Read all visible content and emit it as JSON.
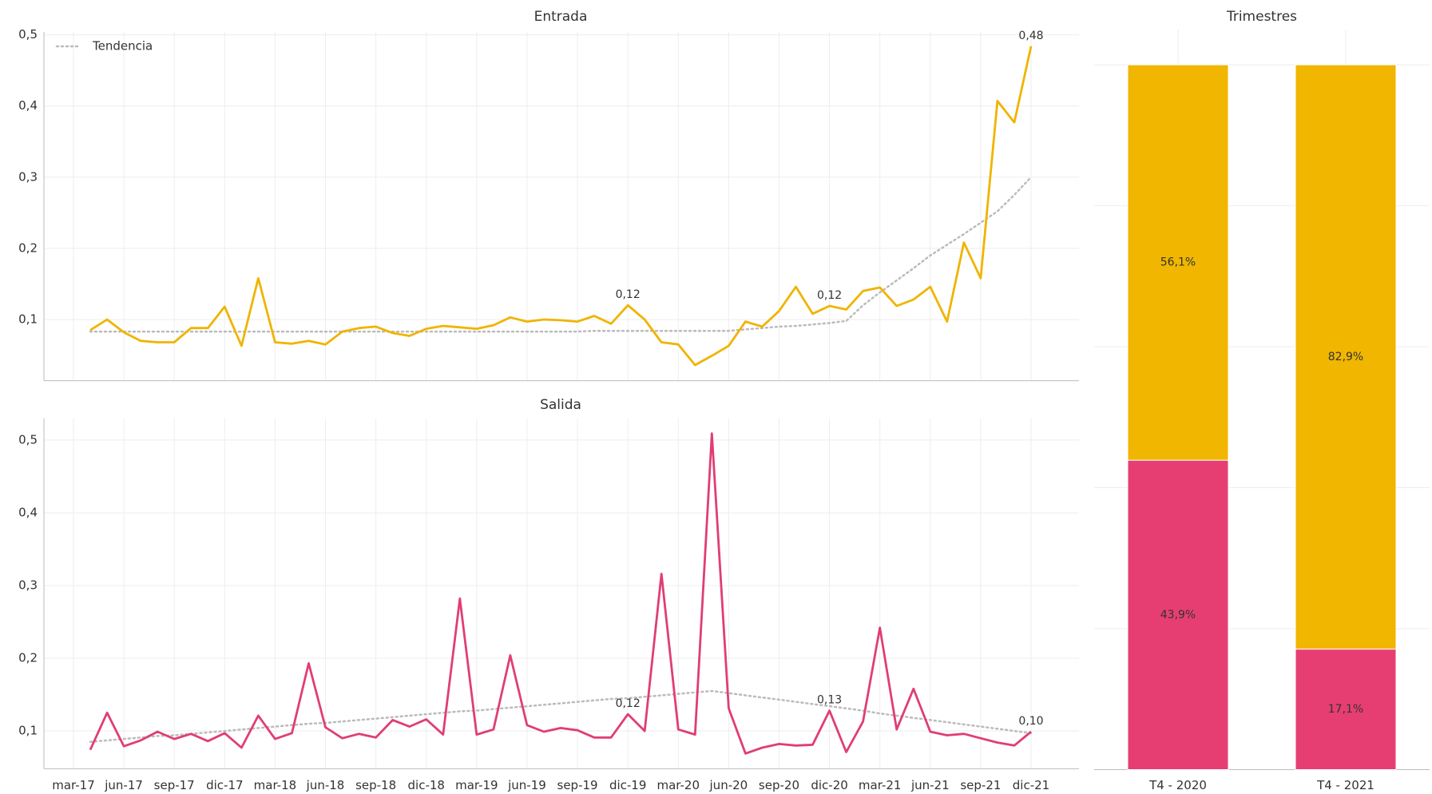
{
  "chart_data": [
    {
      "type": "line",
      "title": "Entrada",
      "color": "#f0b400",
      "values": [
        null,
        0.085,
        0.1,
        0.082,
        0.07,
        0.068,
        0.068,
        0.088,
        0.088,
        0.118,
        0.063,
        0.158,
        0.068,
        0.066,
        0.07,
        0.065,
        0.083,
        0.088,
        0.09,
        0.081,
        0.077,
        0.087,
        0.091,
        0.089,
        0.087,
        0.092,
        0.103,
        0.097,
        0.1,
        0.099,
        0.097,
        0.105,
        0.094,
        0.12,
        0.1,
        0.068,
        0.065,
        0.036,
        0.049,
        0.063,
        0.097,
        0.09,
        0.112,
        0.146,
        0.108,
        0.119,
        0.114,
        0.14,
        0.145,
        0.119,
        0.128,
        0.146,
        0.097,
        0.208,
        0.158,
        0.407,
        0.377,
        0.484
      ],
      "value_labels": [
        null,
        null,
        null,
        null,
        null,
        null,
        null,
        null,
        null,
        null,
        null,
        null,
        null,
        null,
        null,
        null,
        null,
        null,
        null,
        null,
        null,
        null,
        null,
        null,
        null,
        null,
        null,
        null,
        null,
        null,
        null,
        null,
        null,
        "0,12",
        null,
        null,
        null,
        null,
        null,
        null,
        null,
        null,
        null,
        null,
        null,
        "0,12",
        null,
        null,
        null,
        null,
        null,
        null,
        null,
        null,
        null,
        null,
        null,
        "0,48"
      ],
      "trend": {
        "name": "Tendencia",
        "color": "#bbbbbb",
        "values": [
          null,
          0.083,
          0.083,
          0.083,
          0.083,
          0.083,
          0.083,
          0.083,
          0.083,
          0.083,
          0.083,
          0.083,
          0.083,
          0.083,
          0.083,
          0.083,
          0.083,
          0.083,
          0.083,
          0.083,
          0.083,
          0.083,
          0.083,
          0.083,
          0.083,
          0.083,
          0.083,
          0.083,
          0.083,
          0.083,
          0.083,
          0.084,
          0.084,
          0.084,
          0.084,
          0.084,
          0.084,
          0.084,
          0.084,
          0.084,
          0.086,
          0.088,
          0.09,
          0.091,
          0.093,
          0.095,
          0.098,
          0.12,
          0.138,
          0.155,
          0.172,
          0.19,
          0.205,
          0.22,
          0.236,
          0.252,
          0.275,
          0.3
        ]
      },
      "legend": "upper left",
      "ylim": [
        0.014,
        0.504
      ],
      "yticks": [
        {
          "value": 0.1,
          "label": "0,1"
        },
        {
          "value": 0.2,
          "label": "0,2"
        },
        {
          "value": 0.3,
          "label": "0,3"
        },
        {
          "value": 0.4,
          "label": "0,4"
        },
        {
          "value": 0.5,
          "label": "0,5"
        }
      ],
      "grid": true
    },
    {
      "type": "line",
      "title": "Salida",
      "color": "#e03e72",
      "categories": [
        "mar-17",
        null,
        null,
        "jun-17",
        null,
        null,
        "sep-17",
        null,
        null,
        "dic-17",
        null,
        null,
        "mar-18",
        null,
        null,
        "jun-18",
        null,
        null,
        "sep-18",
        null,
        null,
        "dic-18",
        null,
        null,
        "mar-19",
        null,
        null,
        "jun-19",
        null,
        null,
        "sep-19",
        null,
        null,
        "dic-19",
        null,
        null,
        "mar-20",
        null,
        null,
        "jun-20",
        null,
        null,
        "sep-20",
        null,
        null,
        "dic-20",
        null,
        null,
        "mar-21",
        null,
        null,
        "jun-21",
        null,
        null,
        "sep-21",
        null,
        null,
        "dic-21"
      ],
      "values": [
        null,
        0.074,
        0.125,
        0.079,
        0.087,
        0.099,
        0.089,
        0.096,
        0.086,
        0.097,
        0.077,
        0.121,
        0.089,
        0.097,
        0.193,
        0.105,
        0.09,
        0.096,
        0.091,
        0.115,
        0.106,
        0.116,
        0.095,
        0.282,
        0.095,
        0.102,
        0.204,
        0.108,
        0.099,
        0.104,
        0.101,
        0.091,
        0.091,
        0.123,
        0.1,
        0.316,
        0.102,
        0.095,
        0.509,
        0.131,
        0.069,
        0.077,
        0.082,
        0.08,
        0.081,
        0.128,
        0.071,
        0.113,
        0.242,
        0.102,
        0.158,
        0.099,
        0.094,
        0.096,
        0.09,
        0.084,
        0.08,
        0.099
      ],
      "value_labels": [
        null,
        null,
        null,
        null,
        null,
        null,
        null,
        null,
        null,
        null,
        null,
        null,
        null,
        null,
        null,
        null,
        null,
        null,
        null,
        null,
        null,
        null,
        null,
        null,
        null,
        null,
        null,
        null,
        null,
        null,
        null,
        null,
        null,
        "0,12",
        null,
        null,
        null,
        null,
        null,
        null,
        null,
        null,
        null,
        null,
        null,
        "0,13",
        null,
        null,
        null,
        null,
        null,
        null,
        null,
        null,
        null,
        null,
        null,
        "0,10"
      ],
      "trend": {
        "color": "#bbbbbb",
        "values": [
          null,
          0.085,
          0.087,
          0.089,
          0.091,
          0.093,
          0.094,
          0.096,
          0.098,
          0.1,
          0.102,
          0.104,
          0.106,
          0.108,
          0.11,
          0.111,
          0.113,
          0.115,
          0.117,
          0.119,
          0.121,
          0.123,
          0.125,
          0.127,
          0.128,
          0.13,
          0.132,
          0.134,
          0.136,
          0.138,
          0.14,
          0.142,
          0.144,
          0.145,
          0.147,
          0.149,
          0.151,
          0.153,
          0.155,
          0.152,
          0.149,
          0.146,
          0.143,
          0.14,
          0.137,
          0.134,
          0.131,
          0.128,
          0.124,
          0.121,
          0.118,
          0.115,
          0.112,
          0.109,
          0.106,
          0.103,
          0.1,
          0.097
        ]
      },
      "ylim": [
        0.048,
        0.53
      ],
      "yticks": [
        {
          "value": 0.1,
          "label": "0,1"
        },
        {
          "value": 0.2,
          "label": "0,2"
        },
        {
          "value": 0.3,
          "label": "0,3"
        },
        {
          "value": 0.4,
          "label": "0,4"
        },
        {
          "value": 0.5,
          "label": "0,5"
        }
      ],
      "grid": true
    },
    {
      "type": "stacked_bar",
      "title": "Trimestres",
      "categories": [
        "T4 - 2020",
        "T4 - 2021"
      ],
      "series": [
        {
          "color": "#e63e73",
          "values": [
            43.9,
            17.1
          ],
          "value_labels": [
            "43,9%",
            "17,1%"
          ]
        },
        {
          "color": "#f0b600",
          "values": [
            56.1,
            82.9
          ],
          "value_labels": [
            "56,1%",
            "82,9%"
          ]
        }
      ],
      "ylim": [
        0,
        105
      ],
      "yticks": [
        0,
        20,
        40,
        60,
        80,
        100
      ],
      "grid": true
    }
  ]
}
